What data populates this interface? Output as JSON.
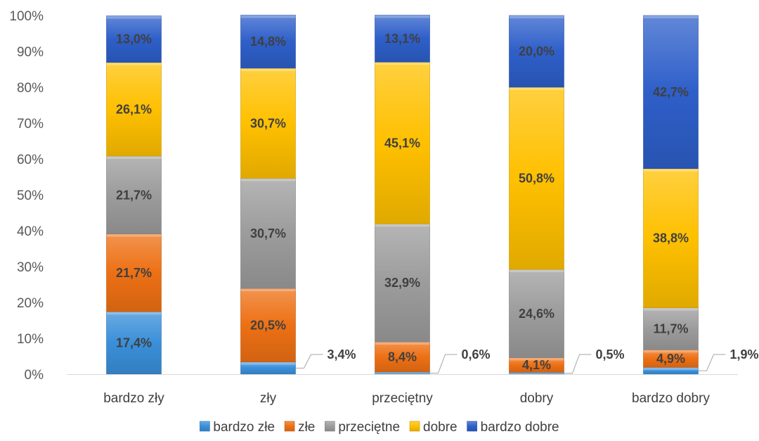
{
  "chart_data": {
    "type": "bar",
    "stacked": true,
    "percent": true,
    "categories": [
      "bardzo zły",
      "zły",
      "przeciętny",
      "dobry",
      "bardzo dobry"
    ],
    "series": [
      {
        "name": "bardzo złe",
        "color": "#3A8FD9",
        "values": [
          17.4,
          3.4,
          0.6,
          0.5,
          1.9
        ],
        "labels": [
          "17,4%",
          "3,4%",
          "0,6%",
          "0,5%",
          "1,9%"
        ]
      },
      {
        "name": "złe",
        "color": "#ED7014",
        "values": [
          21.7,
          20.5,
          8.4,
          4.1,
          4.9
        ],
        "labels": [
          "21,7%",
          "20,5%",
          "8,4%",
          "4,1%",
          "4,9%"
        ]
      },
      {
        "name": "przeciętne",
        "color": "#9C9C9C",
        "values": [
          21.7,
          30.7,
          32.9,
          24.6,
          11.7
        ],
        "labels": [
          "21,7%",
          "30,7%",
          "32,9%",
          "24,6%",
          "11,7%"
        ]
      },
      {
        "name": "dobre",
        "color": "#FFC000",
        "values": [
          26.1,
          30.7,
          45.1,
          50.8,
          38.8
        ],
        "labels": [
          "26,1%",
          "30,7%",
          "45,1%",
          "50,8%",
          "38,8%"
        ]
      },
      {
        "name": "bardzo dobre",
        "color": "#2E5FC9",
        "values": [
          13.0,
          14.8,
          13.1,
          20.0,
          42.7
        ],
        "labels": [
          "13,0%",
          "14,8%",
          "13,1%",
          "20,0%",
          "42,7%"
        ]
      }
    ],
    "ylim": [
      0,
      100
    ],
    "yticks": [
      "0%",
      "10%",
      "20%",
      "30%",
      "40%",
      "50%",
      "60%",
      "70%",
      "80%",
      "90%",
      "100%"
    ],
    "grid": false,
    "legend": "bottom"
  }
}
